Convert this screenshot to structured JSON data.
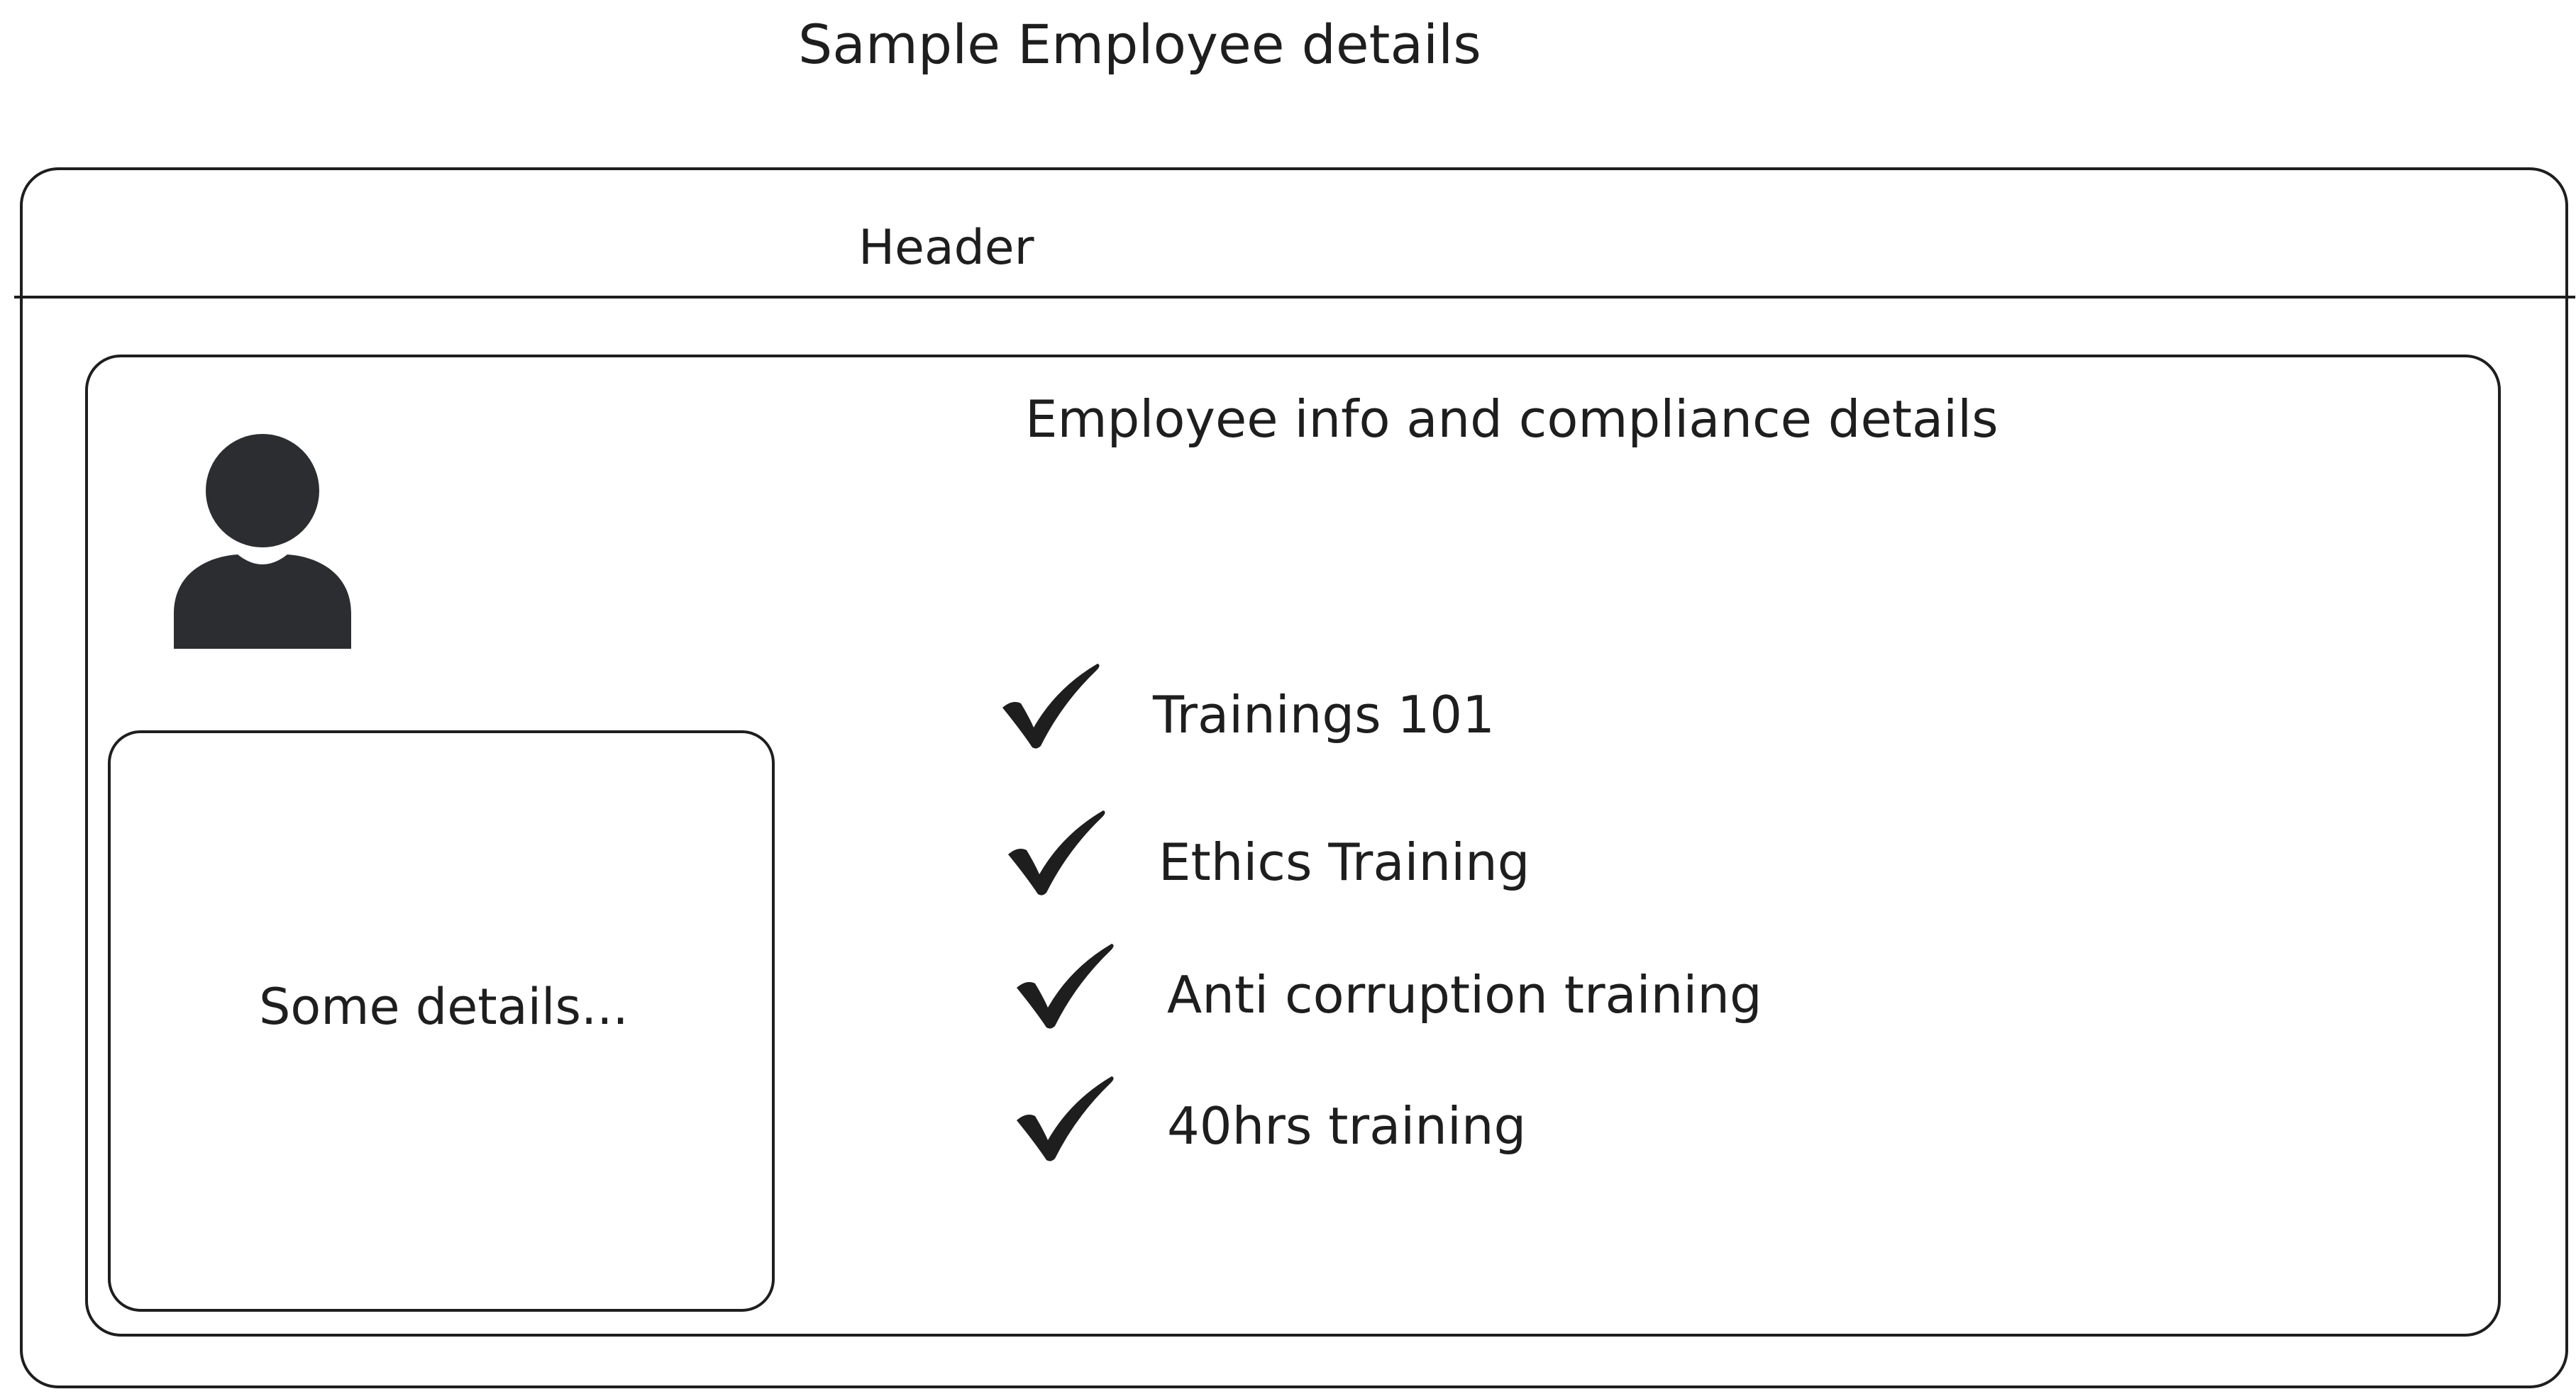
{
  "title": "Sample Employee details",
  "header": {
    "label": "Header"
  },
  "panel": {
    "title": "Employee info and compliance details"
  },
  "avatar": {
    "icon": "user-avatar-icon",
    "color": "#2b2d30"
  },
  "details_box": {
    "text": "Some details..."
  },
  "trainings": [
    {
      "label": "Trainings 101",
      "status_icon": "checkmark-icon",
      "completed": true
    },
    {
      "label": "Ethics Training",
      "status_icon": "checkmark-icon",
      "completed": true
    },
    {
      "label": "Anti corruption training",
      "status_icon": "checkmark-icon",
      "completed": true
    },
    {
      "label": "40hrs training",
      "status_icon": "checkmark-icon",
      "completed": true
    }
  ]
}
